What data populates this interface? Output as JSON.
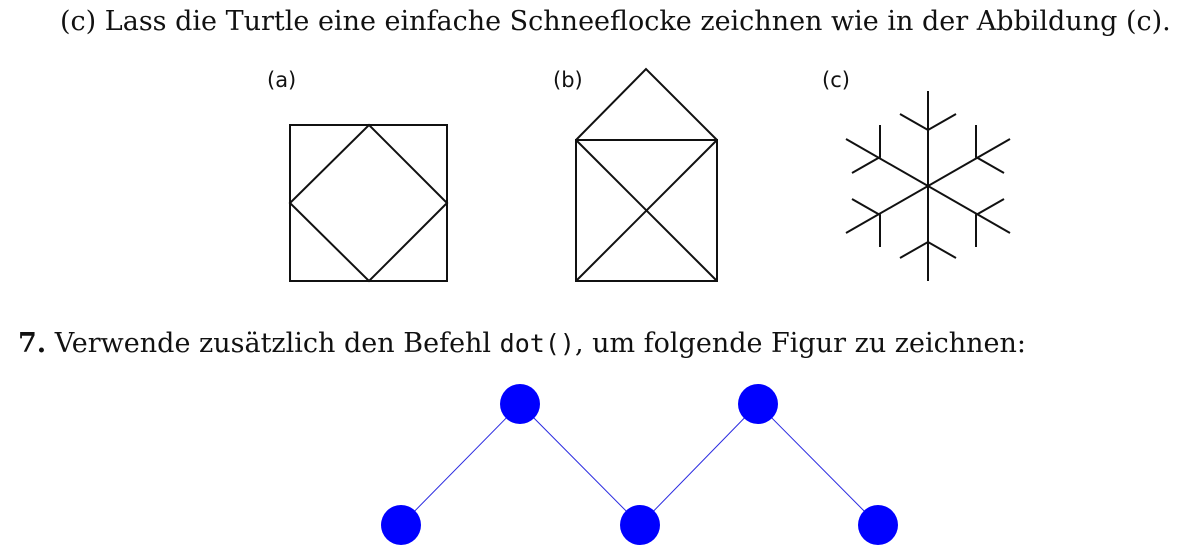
{
  "task_c": {
    "marker": "(c)",
    "text": "Lass die Turtle eine einfache Schneeflocke zeichnen wie in der Abbildung (c)."
  },
  "figures": {
    "a": {
      "label": "(a)"
    },
    "b": {
      "label": "(b)"
    },
    "c": {
      "label": "(c)"
    }
  },
  "task_7": {
    "number": "7.",
    "text_before": "Verwende zusätzlich den Befehl",
    "code": "dot()",
    "text_after": ", um folgende Figur zu zeichnen:"
  },
  "colors": {
    "ink": "#111111",
    "dot_fill": "#0000ff",
    "dot_line": "#2a2ae0"
  }
}
